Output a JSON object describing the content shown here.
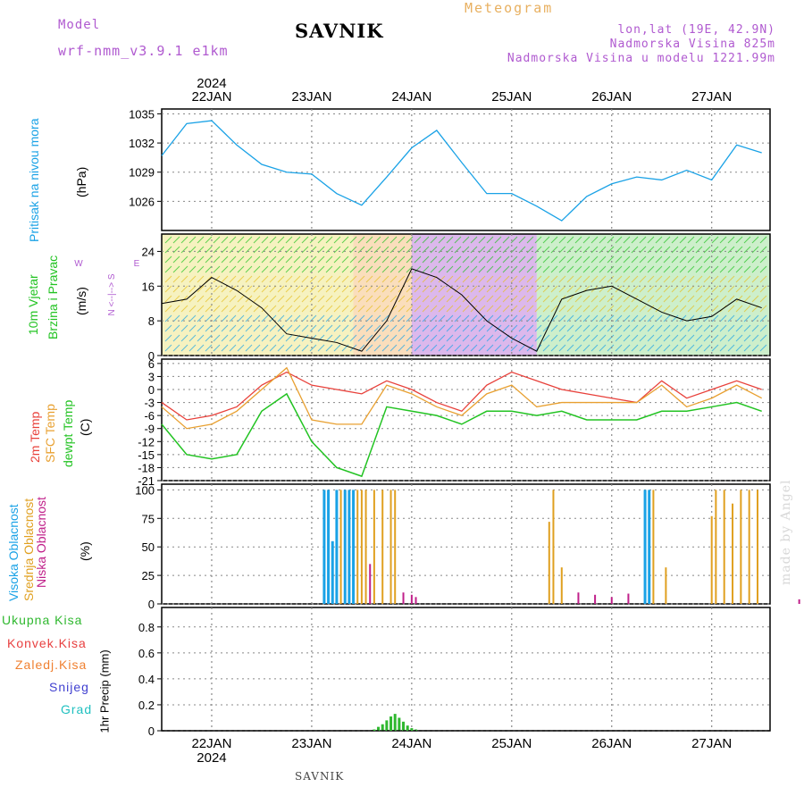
{
  "header": {
    "model_label": "Model",
    "model_name": "wrf-nmm_v3.9.1 e1km",
    "station": "SAVNIK",
    "meteogram": "Meteogram",
    "lonlat": "lon,lat (19E, 42.9N)",
    "elevation": "Nadmorska Visina 825m",
    "model_elevation": "Nadmorska Visina u modelu 1221.99m",
    "year_top": "2024",
    "year_bottom": "2024",
    "station_bottom": "SAVNIK",
    "made_by": "made by Angel"
  },
  "labels": {
    "pressure": [
      "Pritisak na nivou mora",
      "(hPa)"
    ],
    "wind": [
      "10m Vjetar",
      "Brzina i Pravac",
      "(m/s)"
    ],
    "wind_compass": [
      "N",
      "<--|-->",
      "S",
      "W",
      "E"
    ],
    "temp": [
      "2m Temp",
      "SFC Temp",
      "dewpt Temp",
      "(C)"
    ],
    "cloud": [
      "Visoka Oblacnost",
      "Srednja Oblacnost",
      "Niska Oblacnost",
      "(%)"
    ],
    "precip": [
      "Ukupna Kisa",
      "Konvek.Kisa",
      "Zaledj.Kisa",
      "Snijeg",
      "Grad",
      "1hr Precip (mm)"
    ]
  },
  "colors": {
    "pressure": "#1aa2e6",
    "temp2m": "#e8403a",
    "sfc": "#e8a030",
    "dewpt": "#22c322",
    "cloud_high": "#1aa2e6",
    "cloud_mid": "#e0a020",
    "cloud_low": "#c0208a",
    "precip_total": "#2fb82f",
    "precip_conv": "#e84040",
    "precip_frz": "#f08030",
    "precip_snow": "#4040d0",
    "precip_grad": "#20c0c0",
    "grid": "#888888"
  },
  "chart_data": [
    {
      "type": "line",
      "x": [
        "21JAN 12",
        "21JAN 18",
        "22JAN 00",
        "22JAN 06",
        "22JAN 12",
        "22JAN 18",
        "23JAN 00",
        "23JAN 06",
        "23JAN 12",
        "23JAN 18",
        "24JAN 00",
        "24JAN 06",
        "24JAN 12",
        "24JAN 18",
        "25JAN 00",
        "25JAN 06",
        "25JAN 12",
        "25JAN 18",
        "26JAN 00",
        "26JAN 06",
        "26JAN 12",
        "26JAN 18",
        "27JAN 00",
        "27JAN 06",
        "27JAN 12"
      ],
      "categories": [
        "22JAN",
        "23JAN",
        "24JAN",
        "25JAN",
        "26JAN",
        "27JAN"
      ],
      "series": [
        {
          "values": [
            1030.7,
            1034.0,
            1034.3,
            1031.8,
            1029.8,
            1029.0,
            1028.8,
            1026.8,
            1025.6,
            1028.5,
            1031.5,
            1033.3,
            1030.0,
            1026.8,
            1026.8,
            1025.5,
            1024.0,
            1026.5,
            1027.8,
            1028.5,
            1028.2,
            1029.2,
            1028.2,
            1031.8,
            1031.0
          ]
        }
      ],
      "yticks": [
        1026,
        1029,
        1032,
        1035
      ],
      "ylim": [
        1023,
        1035.5
      ]
    },
    {
      "type": "line",
      "x": [
        "21JAN 12",
        "21JAN 18",
        "22JAN 00",
        "22JAN 06",
        "22JAN 12",
        "22JAN 18",
        "23JAN 00",
        "23JAN 06",
        "23JAN 12",
        "23JAN 18",
        "24JAN 00",
        "24JAN 06",
        "24JAN 12",
        "24JAN 18",
        "25JAN 00",
        "25JAN 06",
        "25JAN 12",
        "25JAN 18",
        "26JAN 00",
        "26JAN 06",
        "26JAN 12",
        "26JAN 18",
        "27JAN 00",
        "27JAN 06",
        "27JAN 12"
      ],
      "series": [
        {
          "values": [
            12,
            13,
            18,
            15,
            11,
            5,
            4,
            3,
            1,
            8,
            20,
            18,
            14,
            8,
            4,
            1,
            13,
            15,
            16,
            13,
            10,
            8,
            9,
            13,
            11
          ]
        }
      ],
      "yticks": [
        0,
        8,
        16,
        24
      ],
      "ylim": [
        0,
        28
      ]
    },
    {
      "type": "line",
      "x": [
        "21JAN 12",
        "21JAN 18",
        "22JAN 00",
        "22JAN 06",
        "22JAN 12",
        "22JAN 18",
        "23JAN 00",
        "23JAN 06",
        "23JAN 12",
        "23JAN 18",
        "24JAN 00",
        "24JAN 06",
        "24JAN 12",
        "24JAN 18",
        "25JAN 00",
        "25JAN 06",
        "25JAN 12",
        "25JAN 18",
        "26JAN 00",
        "26JAN 06",
        "26JAN 12",
        "26JAN 18",
        "27JAN 00",
        "27JAN 06",
        "27JAN 12"
      ],
      "series": [
        {
          "name": "2m Temp",
          "values": [
            -3,
            -7,
            -6,
            -4,
            1,
            4,
            1,
            0,
            -1,
            2,
            0,
            -3,
            -5,
            1,
            4,
            2,
            0,
            -1,
            -2,
            -3,
            2,
            -2,
            0,
            2,
            0
          ]
        },
        {
          "name": "SFC Temp",
          "values": [
            -4,
            -9,
            -8,
            -5,
            0,
            5,
            -7,
            -8,
            -8,
            1,
            -1,
            -4,
            -6,
            -1,
            1,
            -4,
            -3,
            -3,
            -3,
            -3,
            1,
            -4,
            -2,
            1,
            -2
          ]
        },
        {
          "name": "dewpt Temp",
          "values": [
            -8,
            -15,
            -16,
            -15,
            -5,
            -1,
            -12,
            -18,
            -20,
            -4,
            -5,
            -6,
            -8,
            -5,
            -5,
            -6,
            -5,
            -7,
            -7,
            -7,
            -5,
            -5,
            -4,
            -3,
            -5
          ]
        }
      ],
      "yticks": [
        -21,
        -18,
        -15,
        -12,
        -9,
        -6,
        -3,
        0,
        3,
        6
      ],
      "ylim": [
        -21,
        7
      ]
    },
    {
      "type": "bar",
      "series": [
        {
          "name": "Visoka Oblacnost",
          "values": [
            {
              "x": "23JAN 03",
              "v": 100
            },
            {
              "x": "23JAN 04",
              "v": 100
            },
            {
              "x": "23JAN 05",
              "v": 55
            },
            {
              "x": "23JAN 06",
              "v": 100
            },
            {
              "x": "23JAN 08",
              "v": 100
            },
            {
              "x": "23JAN 09",
              "v": 100
            },
            {
              "x": "23JAN 10",
              "v": 100
            },
            {
              "x": "26JAN 08",
              "v": 100
            },
            {
              "x": "26JAN 09",
              "v": 100
            }
          ]
        },
        {
          "name": "Srednja Oblacnost",
          "values": [
            {
              "x": "23JAN 07",
              "v": 100
            },
            {
              "x": "23JAN 11",
              "v": 100
            },
            {
              "x": "23JAN 12",
              "v": 100
            },
            {
              "x": "23JAN 13",
              "v": 100
            },
            {
              "x": "23JAN 15",
              "v": 100
            },
            {
              "x": "23JAN 17",
              "v": 100
            },
            {
              "x": "23JAN 19",
              "v": 100
            },
            {
              "x": "23JAN 20",
              "v": 100
            },
            {
              "x": "25JAN 09",
              "v": 72
            },
            {
              "x": "25JAN 10",
              "v": 100
            },
            {
              "x": "25JAN 12",
              "v": 32
            },
            {
              "x": "26JAN 10",
              "v": 100
            },
            {
              "x": "26JAN 13",
              "v": 32
            },
            {
              "x": "27JAN 00",
              "v": 77
            },
            {
              "x": "27JAN 01",
              "v": 100
            },
            {
              "x": "27JAN 03",
              "v": 100
            },
            {
              "x": "27JAN 05",
              "v": 88
            },
            {
              "x": "27JAN 07",
              "v": 100
            },
            {
              "x": "27JAN 09",
              "v": 100
            },
            {
              "x": "27JAN 11",
              "v": 100
            }
          ]
        },
        {
          "name": "Niska Oblacnost",
          "values": [
            {
              "x": "23JAN 14",
              "v": 35
            },
            {
              "x": "23JAN 22",
              "v": 10
            },
            {
              "x": "24JAN 00",
              "v": 8
            },
            {
              "x": "24JAN 01",
              "v": 6
            },
            {
              "x": "25JAN 16",
              "v": 10
            },
            {
              "x": "25JAN 20",
              "v": 8
            },
            {
              "x": "26JAN 00",
              "v": 6
            },
            {
              "x": "26JAN 04",
              "v": 9
            },
            {
              "x": "27JAN 21",
              "v": 4
            }
          ]
        }
      ],
      "yticks": [
        0,
        25,
        50,
        75,
        100
      ],
      "ylim": [
        0,
        105
      ]
    },
    {
      "type": "bar",
      "series": [
        {
          "name": "Ukupna Kisa",
          "values": [
            {
              "x": "23JAN 15",
              "v": 0.01
            },
            {
              "x": "23JAN 16",
              "v": 0.03
            },
            {
              "x": "23JAN 17",
              "v": 0.05
            },
            {
              "x": "23JAN 18",
              "v": 0.08
            },
            {
              "x": "23JAN 19",
              "v": 0.11
            },
            {
              "x": "23JAN 20",
              "v": 0.13
            },
            {
              "x": "23JAN 21",
              "v": 0.1
            },
            {
              "x": "23JAN 22",
              "v": 0.07
            },
            {
              "x": "23JAN 23",
              "v": 0.04
            },
            {
              "x": "24JAN 00",
              "v": 0.02
            },
            {
              "x": "24JAN 01",
              "v": 0.01
            }
          ]
        }
      ],
      "yticks": [
        0,
        0.2,
        0.4,
        0.6,
        0.8
      ],
      "ylim": [
        0,
        0.95
      ]
    }
  ]
}
